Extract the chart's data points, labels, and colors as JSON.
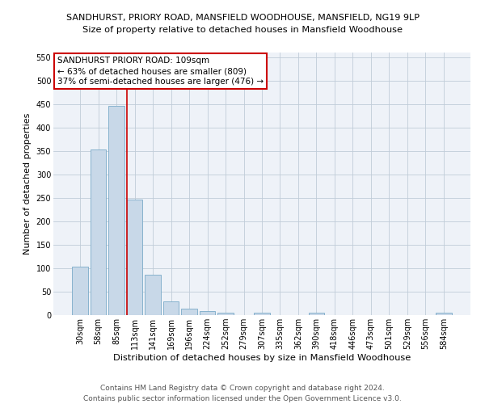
{
  "title_line1": "SANDHURST, PRIORY ROAD, MANSFIELD WOODHOUSE, MANSFIELD, NG19 9LP",
  "title_line2": "Size of property relative to detached houses in Mansfield Woodhouse",
  "xlabel": "Distribution of detached houses by size in Mansfield Woodhouse",
  "ylabel": "Number of detached properties",
  "footer_line1": "Contains HM Land Registry data © Crown copyright and database right 2024.",
  "footer_line2": "Contains public sector information licensed under the Open Government Licence v3.0.",
  "annotation_line1": "SANDHURST PRIORY ROAD: 109sqm",
  "annotation_line2": "← 63% of detached houses are smaller (809)",
  "annotation_line3": "37% of semi-detached houses are larger (476) →",
  "bar_color": "#c8d8e8",
  "bar_edge_color": "#7aaac8",
  "vline_color": "#cc0000",
  "grid_color": "#c0ccd8",
  "background_color": "#eef2f8",
  "annotation_box_color": "#ffffff",
  "annotation_border_color": "#cc0000",
  "categories": [
    "30sqm",
    "58sqm",
    "85sqm",
    "113sqm",
    "141sqm",
    "169sqm",
    "196sqm",
    "224sqm",
    "252sqm",
    "279sqm",
    "307sqm",
    "335sqm",
    "362sqm",
    "390sqm",
    "418sqm",
    "446sqm",
    "473sqm",
    "501sqm",
    "529sqm",
    "556sqm",
    "584sqm"
  ],
  "values": [
    103,
    353,
    447,
    246,
    87,
    30,
    13,
    9,
    6,
    0,
    6,
    0,
    0,
    6,
    0,
    0,
    0,
    0,
    0,
    0,
    5
  ],
  "vline_x": 2.58,
  "ylim": [
    0,
    560
  ],
  "yticks": [
    0,
    50,
    100,
    150,
    200,
    250,
    300,
    350,
    400,
    450,
    500,
    550
  ],
  "title_fontsize": 8.0,
  "subtitle_fontsize": 8.2,
  "xlabel_fontsize": 8.2,
  "ylabel_fontsize": 8.0,
  "tick_fontsize": 7.0,
  "annotation_fontsize": 7.5,
  "footer_fontsize": 6.5
}
